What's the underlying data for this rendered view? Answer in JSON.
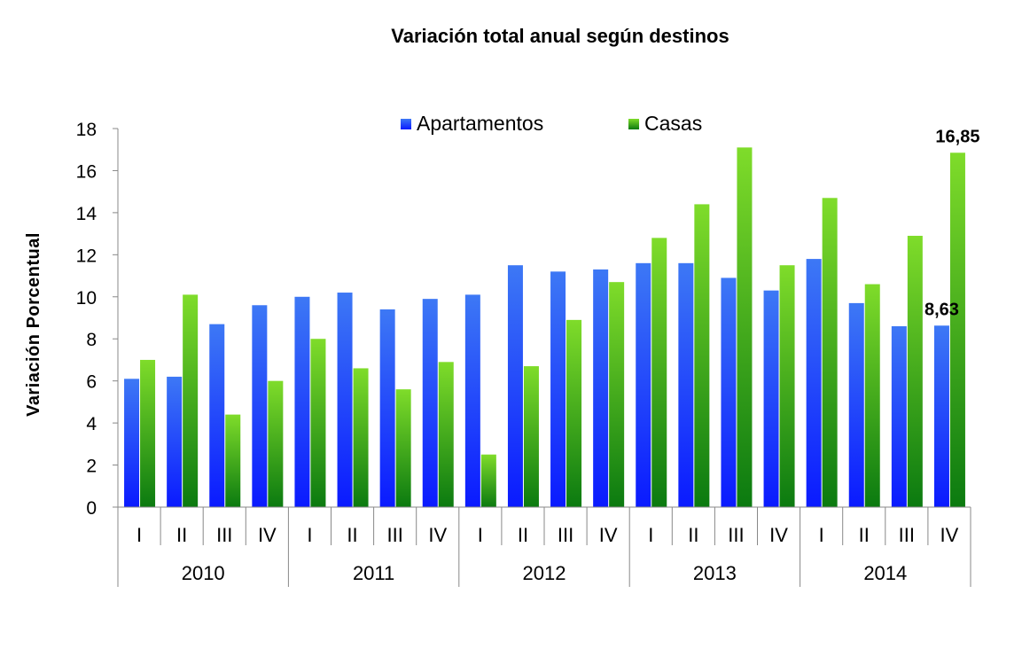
{
  "chart_data": {
    "type": "bar",
    "title": "Variación total anual según destinos",
    "ylabel": "Variación Porcentual",
    "xlabel": "",
    "ylim": [
      0,
      18
    ],
    "yticks": [
      "0",
      "2",
      "4",
      "6",
      "8",
      "10",
      "12",
      "14",
      "16",
      "18"
    ],
    "years": [
      "2010",
      "2011",
      "2012",
      "2013",
      "2014"
    ],
    "quarters": [
      "I",
      "II",
      "III",
      "IV"
    ],
    "categories": [
      "I",
      "II",
      "III",
      "IV",
      "I",
      "II",
      "III",
      "IV",
      "I",
      "II",
      "III",
      "IV",
      "I",
      "II",
      "III",
      "IV",
      "I",
      "II",
      "III",
      "IV"
    ],
    "series": [
      {
        "name": "Apartamentos",
        "color": "#2a55ff",
        "values": [
          6.1,
          6.2,
          8.7,
          9.6,
          10.0,
          10.2,
          9.4,
          9.9,
          10.1,
          11.5,
          11.2,
          11.3,
          11.6,
          11.6,
          10.9,
          10.3,
          11.8,
          9.7,
          8.6,
          8.63
        ]
      },
      {
        "name": "Casas",
        "color": "#4cc21a",
        "values": [
          7.0,
          10.1,
          4.4,
          6.0,
          8.0,
          6.6,
          5.6,
          6.9,
          2.5,
          6.7,
          8.9,
          10.7,
          12.8,
          14.4,
          17.1,
          11.5,
          14.7,
          10.6,
          12.9,
          16.85
        ]
      }
    ],
    "data_labels": [
      {
        "series": 0,
        "index": 19,
        "text": "8,63"
      },
      {
        "series": 1,
        "index": 19,
        "text": "16,85"
      }
    ],
    "legend": "top-center",
    "grid": false
  }
}
